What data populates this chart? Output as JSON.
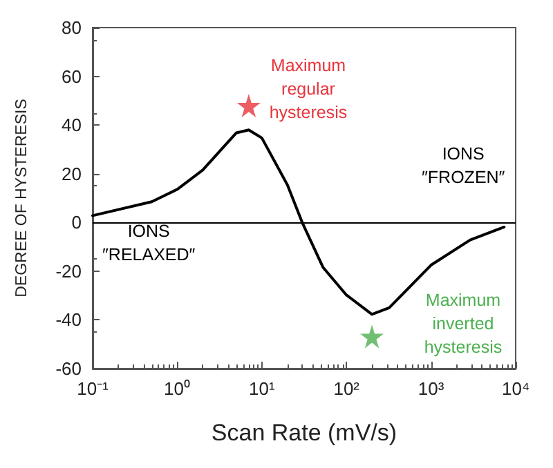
{
  "chart_data": {
    "type": "line",
    "xlabel": "Scan Rate (mV/s)",
    "ylabel": "DEGREE OF HYSTERESIS",
    "log": "x",
    "xlim": [
      0.1,
      10000
    ],
    "xticks": [
      {
        "value": 0.1,
        "label": "10⁻¹"
      },
      {
        "value": 1,
        "label": "10⁰"
      },
      {
        "value": 10,
        "label": "10¹"
      },
      {
        "value": 100,
        "label": "10²"
      },
      {
        "value": 1000,
        "label": "10³"
      },
      {
        "value": 10000,
        "label": "10⁴"
      }
    ],
    "ylim": [
      -60,
      80
    ],
    "yticks": [
      -60,
      -40,
      -20,
      0,
      20,
      40,
      60,
      80
    ],
    "grid": false,
    "series": [
      {
        "color": "#000000",
        "marker": "none",
        "line_style": "solid",
        "x": [
          0.1,
          0.5,
          1,
          2,
          5,
          7,
          10,
          20,
          30,
          53,
          100,
          200,
          320,
          1000,
          2900,
          7300
        ],
        "values": [
          2.8,
          8.5,
          13.6,
          21.5,
          36.8,
          38,
          34.7,
          15.5,
          0,
          -18.5,
          -29.8,
          -37.7,
          -35,
          -17.5,
          -7.2,
          -1.9
        ]
      },
      {
        "type": "scatter",
        "marker": "star",
        "color": "#e8343c",
        "x": [
          7
        ],
        "values": [
          48
        ]
      },
      {
        "type": "scatter",
        "marker": "star",
        "color": "#4caf50",
        "x": [
          200
        ],
        "values": [
          -46.8
        ]
      }
    ],
    "ref_lines": [
      {
        "axis": "y",
        "value": 0,
        "color": "#000000"
      }
    ],
    "annotations": [
      "Maximum\nregular\nhysteresis",
      "Maximum\ninverted\nhysteresis",
      "IONS\n″FROZEN″",
      "IONS\n″RELAXED″"
    ]
  }
}
